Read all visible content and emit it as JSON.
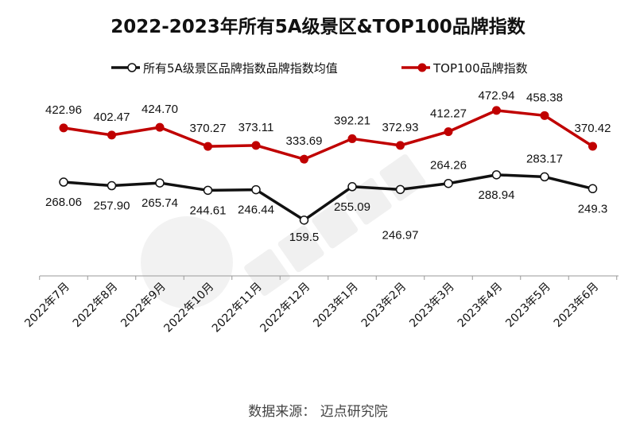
{
  "chart_data": {
    "type": "line",
    "title": "2022-2023年所有5A级景区&TOP100品牌指数",
    "categories": [
      "2022年7月",
      "2022年8月",
      "2022年9月",
      "2022年10月",
      "2022年11月",
      "2022年12月",
      "2023年1月",
      "2023年2月",
      "2023年3月",
      "2023年4月",
      "2023年5月",
      "2023年6月"
    ],
    "series": [
      {
        "name": "所有5A级景区品牌指数品牌指数均值",
        "color": "#111111",
        "marker": "hollow-circle",
        "values": [
          268.06,
          257.9,
          265.74,
          244.61,
          246.44,
          159.5,
          255.09,
          246.97,
          264.26,
          288.94,
          283.17,
          249.3
        ],
        "labels": [
          "268.06",
          "257.90",
          "265.74",
          "244.61",
          "246.44",
          "159.5",
          "255.09",
          "246.97",
          "264.26",
          "288.94",
          "283.17",
          "249.3"
        ],
        "label_pos": [
          "below",
          "below",
          "below",
          "below",
          "below",
          "below",
          "below",
          "below",
          "above",
          "below",
          "above",
          "below"
        ]
      },
      {
        "name": "TOP100品牌指数",
        "color": "#c00000",
        "marker": "filled-circle",
        "values": [
          422.96,
          402.47,
          424.7,
          370.27,
          373.11,
          333.69,
          392.21,
          372.93,
          412.27,
          472.94,
          458.38,
          370.42
        ],
        "labels": [
          "422.96",
          "402.47",
          "424.70",
          "370.27",
          "373.11",
          "333.69",
          "392.21",
          "372.93",
          "412.27",
          "472.94",
          "458.38",
          "370.42"
        ],
        "label_pos": [
          "above",
          "above",
          "above",
          "above",
          "above",
          "above",
          "above",
          "above",
          "above",
          "above",
          "above",
          "above"
        ]
      }
    ],
    "ylim": [
      0,
      500
    ],
    "grid": false,
    "legend": "top"
  },
  "source": "数据来源：  迈点研究院",
  "watermark": "迈点研究院 MEADIN ACADEMY"
}
